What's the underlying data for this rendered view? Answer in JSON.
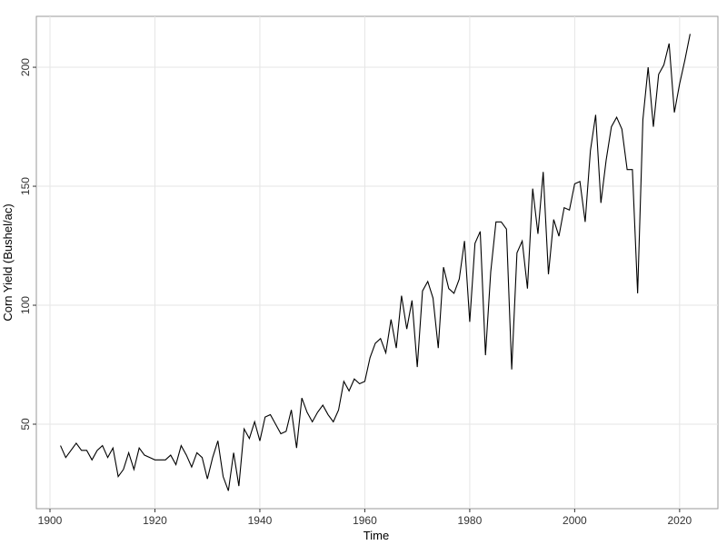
{
  "chart_data": {
    "type": "line",
    "x_label": "Time",
    "y_label": "Corn Yield (Bushel/ac)",
    "x": [
      1902,
      1903,
      1904,
      1905,
      1906,
      1907,
      1908,
      1909,
      1910,
      1911,
      1912,
      1913,
      1914,
      1915,
      1916,
      1917,
      1918,
      1919,
      1920,
      1921,
      1922,
      1923,
      1924,
      1925,
      1926,
      1927,
      1928,
      1929,
      1930,
      1931,
      1932,
      1933,
      1934,
      1935,
      1936,
      1937,
      1938,
      1939,
      1940,
      1941,
      1942,
      1943,
      1944,
      1945,
      1946,
      1947,
      1948,
      1949,
      1950,
      1951,
      1952,
      1953,
      1954,
      1955,
      1956,
      1957,
      1958,
      1959,
      1960,
      1961,
      1962,
      1963,
      1964,
      1965,
      1966,
      1967,
      1968,
      1969,
      1970,
      1971,
      1972,
      1973,
      1974,
      1975,
      1976,
      1977,
      1978,
      1979,
      1980,
      1981,
      1982,
      1983,
      1984,
      1985,
      1986,
      1987,
      1988,
      1989,
      1990,
      1991,
      1992,
      1993,
      1994,
      1995,
      1996,
      1997,
      1998,
      1999,
      2000,
      2001,
      2002,
      2003,
      2004,
      2005,
      2006,
      2007,
      2008,
      2009,
      2010,
      2011,
      2012,
      2013,
      2014,
      2015,
      2016,
      2017,
      2018,
      2019,
      2020,
      2021,
      2022
    ],
    "series": [
      {
        "color": "#000000",
        "values": [
          41,
          36,
          39,
          42,
          39,
          39,
          35,
          39,
          41,
          36,
          40,
          28,
          31,
          38,
          31,
          40,
          37,
          36,
          35,
          35,
          35,
          37,
          33,
          41,
          37,
          32,
          38,
          36,
          27,
          36,
          43,
          28,
          22,
          38,
          24,
          48,
          44,
          51,
          43,
          53,
          54,
          50,
          46,
          47,
          56,
          40,
          61,
          55,
          51,
          55,
          58,
          54,
          51,
          56,
          68,
          64,
          69,
          67,
          68,
          78,
          84,
          86,
          80,
          94,
          82,
          104,
          90,
          102,
          74,
          106,
          110,
          103,
          82,
          116,
          107,
          105,
          111,
          127,
          93,
          126,
          131,
          79,
          114,
          135,
          135,
          132,
          73,
          122,
          127,
          107,
          149,
          130,
          156,
          113,
          136,
          129,
          141,
          140,
          151,
          152,
          135,
          165,
          180,
          143,
          161,
          175,
          179,
          174,
          157,
          157,
          105,
          178,
          200,
          175,
          197,
          201,
          210,
          181,
          193,
          203,
          214
        ]
      }
    ],
    "xlim": [
      1897.4,
      2027.3
    ],
    "ylim": [
      14.5,
      221.4
    ],
    "xticks": [
      1900,
      1920,
      1940,
      1960,
      1980,
      2000,
      2020
    ],
    "yticks": [
      50,
      100,
      150,
      200
    ],
    "grid": true
  }
}
